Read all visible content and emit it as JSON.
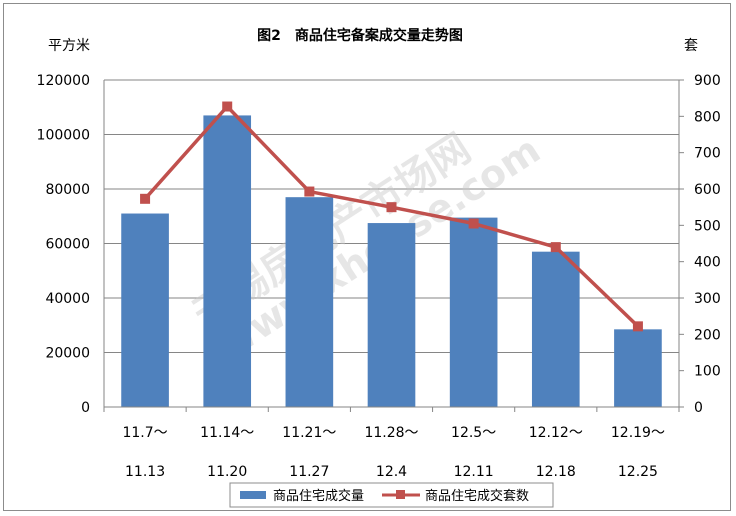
{
  "chart_data": {
    "type": "bar",
    "title": "图2　商品住宅备案成交量走势图",
    "ylabel_left": "平方米",
    "ylabel_right": "套",
    "categories": [
      [
        "11.7～",
        "11.13"
      ],
      [
        "11.14～",
        "11.20"
      ],
      [
        "11.21～",
        "11.27"
      ],
      [
        "11.28～",
        "12.4"
      ],
      [
        "12.5～",
        "12.11"
      ],
      [
        "12.12～",
        "12.18"
      ],
      [
        "12.19～",
        "12.25"
      ]
    ],
    "series": [
      {
        "name": "商品住宅成交量",
        "type": "bar",
        "axis": "left",
        "color": "#4f81bd",
        "values": [
          71000,
          107000,
          77000,
          67500,
          69500,
          57000,
          28500
        ]
      },
      {
        "name": "商品住宅成交套数",
        "type": "line",
        "axis": "right",
        "color": "#c0504d",
        "values": [
          573,
          827,
          593,
          550,
          505,
          440,
          222
        ]
      }
    ],
    "ylim_left": [
      0,
      120000
    ],
    "yticks_left": [
      "0",
      "20000",
      "40000",
      "60000",
      "80000",
      "100000",
      "120000"
    ],
    "ylim_right": [
      0,
      900
    ],
    "yticks_right": [
      "0",
      "100",
      "200",
      "300",
      "400",
      "500",
      "600",
      "700",
      "800",
      "900"
    ],
    "grid": true,
    "legend": "bottom"
  },
  "watermark": {
    "line1": "无锡房地产市场网",
    "line2": "www.xhouse.com"
  }
}
